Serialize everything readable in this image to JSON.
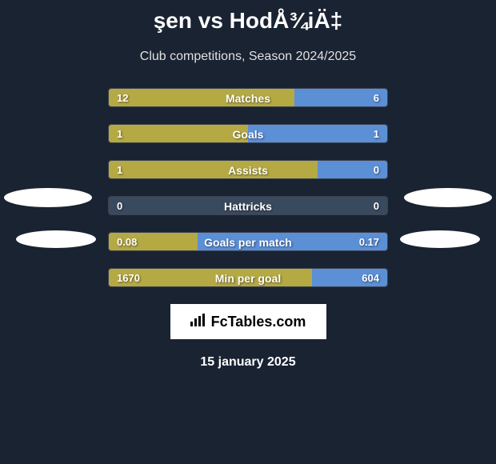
{
  "title": "şen vs HodÅ¾iÄ‡",
  "subtitle": "Club competitions, Season 2024/2025",
  "date": "15 january 2025",
  "logo_text": "FcTables.com",
  "colors": {
    "background": "#1a2332",
    "left_bar": "#b5a943",
    "right_bar": "#5b8fd6",
    "neutral_bg": "#3a4a5e",
    "text": "#ffffff",
    "ellipse": "#ffffff"
  },
  "stats": [
    {
      "label": "Matches",
      "left_value": "12",
      "right_value": "6",
      "left_pct": 66.6,
      "right_pct": 33.4,
      "left_color": "#b5a943",
      "right_color": "#5b8fd6"
    },
    {
      "label": "Goals",
      "left_value": "1",
      "right_value": "1",
      "left_pct": 50,
      "right_pct": 50,
      "left_color": "#b5a943",
      "right_color": "#5b8fd6"
    },
    {
      "label": "Assists",
      "left_value": "1",
      "right_value": "0",
      "left_pct": 75,
      "right_pct": 25,
      "left_color": "#b5a943",
      "right_color": "#5b8fd6"
    },
    {
      "label": "Hattricks",
      "left_value": "0",
      "right_value": "0",
      "left_pct": 50,
      "right_pct": 50,
      "left_color": "#3a4a5e",
      "right_color": "#3a4a5e"
    },
    {
      "label": "Goals per match",
      "left_value": "0.08",
      "right_value": "0.17",
      "left_pct": 32,
      "right_pct": 68,
      "left_color": "#b5a943",
      "right_color": "#5b8fd6"
    },
    {
      "label": "Min per goal",
      "left_value": "1670",
      "right_value": "604",
      "left_pct": 73,
      "right_pct": 27,
      "left_color": "#b5a943",
      "right_color": "#5b8fd6"
    }
  ]
}
